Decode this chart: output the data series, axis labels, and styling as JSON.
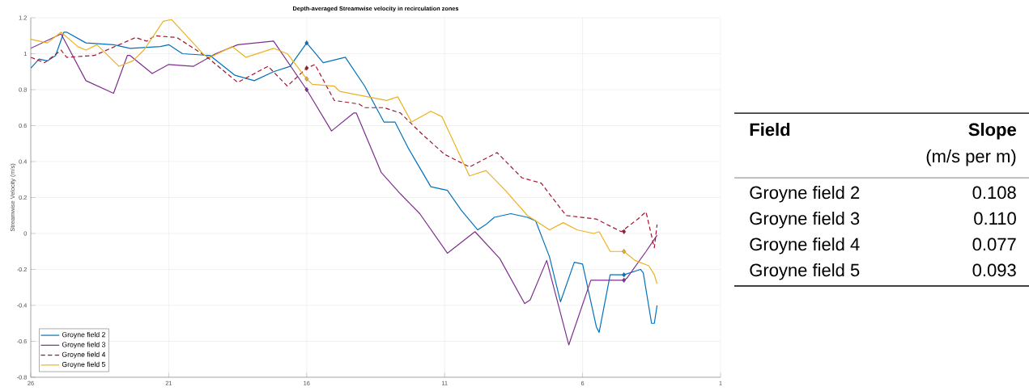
{
  "chart_data": [
    {
      "type": "line",
      "title": "Depth-averaged Streamwise velocity in recirculation zones",
      "ylabel": "Streamwise Velocity (m/s)",
      "xlim": [
        26,
        1
      ],
      "xticks": [
        26,
        21,
        16,
        11,
        6,
        1
      ],
      "ylim": [
        -0.8,
        1.2
      ],
      "yticks": [
        -0.8,
        -0.6,
        -0.4,
        -0.2,
        0,
        0.2,
        0.4,
        0.6,
        0.8,
        1,
        1.2
      ],
      "grid": true,
      "legend": "bottom left",
      "marker": "none",
      "series": [
        {
          "name": "Groyne field 2",
          "color": "#0072bd",
          "line_style": "solid",
          "x": [
            26,
            25.7,
            25.4,
            25.1,
            24.8,
            24.7,
            24.0,
            23.0,
            22.4,
            21.3,
            21.0,
            20.5,
            19.5,
            18.6,
            17.9,
            17.2,
            16.6,
            16.0,
            15.4,
            14.6,
            13.9,
            13.2,
            12.8,
            12.3,
            11.5,
            10.9,
            10.4,
            9.8,
            9.5,
            9.2,
            8.6,
            8.0,
            7.7,
            7.2,
            6.8,
            6.3,
            6.0,
            5.5,
            5.4,
            5.0,
            4.5,
            3.9,
            3.8,
            3.5,
            3.4,
            3.3
          ],
          "values": [
            0.92,
            0.97,
            0.96,
            0.99,
            1.12,
            1.12,
            1.06,
            1.05,
            1.03,
            1.04,
            1.05,
            1.0,
            0.99,
            0.88,
            0.85,
            0.9,
            0.93,
            1.06,
            0.95,
            0.98,
            0.82,
            0.62,
            0.62,
            0.47,
            0.26,
            0.24,
            0.13,
            0.02,
            0.05,
            0.09,
            0.11,
            0.09,
            0.07,
            -0.13,
            -0.38,
            -0.16,
            -0.17,
            -0.52,
            -0.55,
            -0.23,
            -0.23,
            -0.2,
            -0.22,
            -0.5,
            -0.5,
            -0.4
          ]
        },
        {
          "name": "Groyne field 3",
          "color": "#7e2f8e",
          "line_style": "solid",
          "x": [
            26,
            24.9,
            24.0,
            23.0,
            22.5,
            22.4,
            21.6,
            21.0,
            20.1,
            19.3,
            18.5,
            17.2,
            16.0,
            15.1,
            14.3,
            14.2,
            13.3,
            12.6,
            11.9,
            10.9,
            9.9,
            9.0,
            8.1,
            7.9,
            7.3,
            6.5,
            5.7,
            4.5,
            4.4,
            3.7,
            3.3
          ],
          "values": [
            1.03,
            1.11,
            0.85,
            0.78,
            0.99,
            0.99,
            0.89,
            0.94,
            0.93,
            1.0,
            1.05,
            1.07,
            0.8,
            0.57,
            0.67,
            0.67,
            0.34,
            0.22,
            0.11,
            -0.11,
            0.01,
            -0.14,
            -0.39,
            -0.37,
            -0.15,
            -0.62,
            -0.26,
            -0.26,
            -0.25,
            -0.1,
            -0.01
          ]
        },
        {
          "name": "Groyne field 4",
          "color": "#a2142f",
          "line_style": "dashed",
          "x": [
            26,
            25.5,
            24.9,
            24.7,
            23.7,
            22.5,
            22.2,
            21.8,
            21.5,
            20.7,
            19.6,
            18.5,
            17.4,
            16.7,
            16.0,
            15.7,
            15.0,
            14.1,
            13.9,
            13.2,
            12.6,
            11.8,
            11.0,
            10.1,
            9.1,
            8.2,
            7.5,
            6.6,
            5.5,
            4.6,
            4.0,
            3.7,
            3.4,
            3.3
          ],
          "values": [
            0.98,
            0.95,
            1.02,
            0.98,
            0.99,
            1.07,
            1.09,
            1.07,
            1.1,
            1.09,
            0.98,
            0.84,
            0.93,
            0.82,
            0.92,
            0.94,
            0.74,
            0.72,
            0.7,
            0.7,
            0.67,
            0.55,
            0.44,
            0.37,
            0.45,
            0.31,
            0.28,
            0.1,
            0.08,
            0.01,
            0.08,
            0.12,
            -0.08,
            0.05
          ]
        },
        {
          "name": "Groyne field 5",
          "color": "#edb120",
          "line_style": "solid",
          "x": [
            26,
            25.4,
            24.9,
            24.3,
            24.0,
            23.6,
            22.8,
            22.3,
            21.9,
            21.2,
            20.9,
            19.7,
            19.5,
            18.7,
            18.2,
            17.2,
            16.7,
            16.0,
            15.8,
            15.0,
            14.8,
            13.1,
            12.7,
            12.2,
            11.5,
            11.1,
            10.1,
            9.5,
            8.8,
            8.0,
            7.2,
            6.7,
            6.2,
            5.6,
            5.4,
            5.0,
            4.5,
            4.1,
            3.6,
            3.4,
            3.3
          ],
          "values": [
            1.08,
            1.06,
            1.12,
            1.04,
            1.02,
            1.05,
            0.93,
            0.96,
            1.02,
            1.18,
            1.19,
            0.99,
            0.98,
            1.04,
            0.98,
            1.03,
            1.0,
            0.86,
            0.83,
            0.82,
            0.79,
            0.74,
            0.76,
            0.62,
            0.68,
            0.65,
            0.32,
            0.35,
            0.24,
            0.1,
            0.02,
            0.06,
            0.02,
            0.0,
            0.01,
            -0.1,
            -0.1,
            -0.15,
            -0.18,
            -0.23,
            -0.28
          ]
        },
        {
          "type": "scatter",
          "color": "#0072bd",
          "marker": "diamond",
          "x": [
            16,
            4.5
          ],
          "values": [
            1.06,
            -0.23
          ]
        },
        {
          "type": "scatter",
          "color": "#7e2f8e",
          "marker": "diamond",
          "x": [
            16,
            4.5
          ],
          "values": [
            0.8,
            -0.26
          ]
        },
        {
          "type": "scatter",
          "color": "#a2142f",
          "marker": "diamond",
          "x": [
            16,
            4.5
          ],
          "values": [
            0.92,
            0.01
          ]
        },
        {
          "type": "scatter",
          "color": "#edb120",
          "marker": "diamond",
          "x": [
            16,
            4.5
          ],
          "values": [
            0.86,
            -0.1
          ]
        }
      ]
    },
    {
      "type": "other",
      "annotations": [
        "Field",
        "Slope",
        "(m/s per m)"
      ],
      "categories": [
        "Groyne field 2",
        "Groyne field 3",
        "Groyne field 4",
        "Groyne field 5"
      ],
      "value_labels": [
        "0.108",
        "0.110",
        "0.077",
        "0.093"
      ]
    }
  ]
}
